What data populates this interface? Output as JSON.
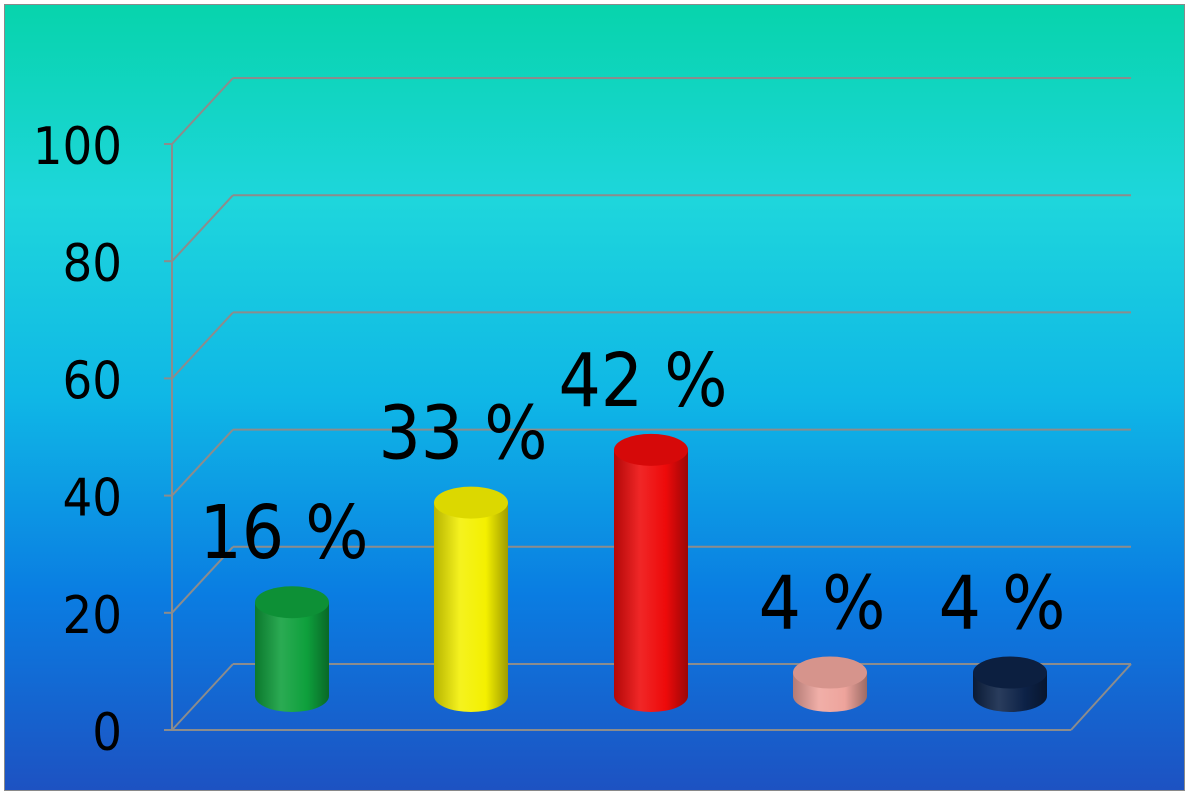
{
  "chart_data": {
    "type": "bar",
    "categories": [
      "",
      "",
      "",
      "",
      ""
    ],
    "values": [
      16,
      33,
      42,
      4,
      4
    ],
    "data_labels": [
      "16 %",
      "33 %",
      "42 %",
      "4 %",
      "4 %"
    ],
    "title": "",
    "xlabel": "",
    "ylabel": "",
    "ylim": [
      0,
      100
    ],
    "y_ticks": [
      0,
      20,
      40,
      60,
      80,
      100
    ],
    "y_tick_labels": [
      "0",
      "20",
      "40",
      "60",
      "80",
      "100"
    ],
    "grid": true,
    "style": "3d-cylinder",
    "colors": [
      "#0ea03c",
      "#f4f000",
      "#ee0a0a",
      "#eea49c",
      "#0d2247"
    ],
    "background_gradient": [
      "#07d4ac",
      "#1ed6dc",
      "#0a7de2",
      "#1d52c2"
    ],
    "grid_color": "#8c8c8c"
  }
}
